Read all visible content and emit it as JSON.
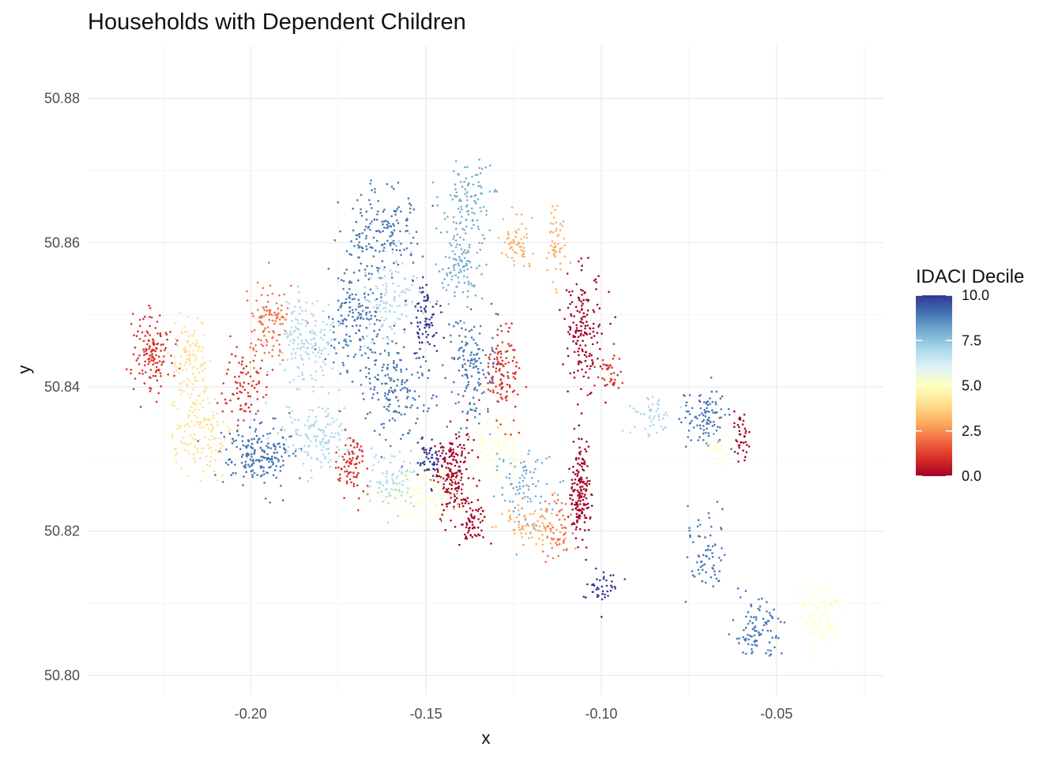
{
  "chart_data": {
    "type": "scatter",
    "title": "Households with Dependent Children",
    "xlabel": "x",
    "ylabel": "y",
    "xlim": [
      -0.2465,
      -0.0195
    ],
    "ylim": [
      50.7973,
      50.8873
    ],
    "x_ticks": [
      -0.2,
      -0.15,
      -0.1,
      -0.05
    ],
    "x_tick_labels": [
      "-0.20",
      "-0.15",
      "-0.10",
      "-0.05"
    ],
    "y_ticks": [
      50.8,
      50.82,
      50.84,
      50.86,
      50.88
    ],
    "y_tick_labels": [
      "50.80",
      "50.82",
      "50.84",
      "50.86",
      "50.88"
    ],
    "grid": true,
    "legend": {
      "title": "IDACI Decile",
      "position": "right",
      "min": 0,
      "max": 10,
      "ticks": [
        0,
        2.5,
        5,
        7.5,
        10
      ],
      "tick_labels": [
        "0.0",
        "2.5",
        "5.0",
        "7.5",
        "10.0"
      ],
      "colors": [
        "#a50026",
        "#d73027",
        "#f46d43",
        "#fdae61",
        "#fee090",
        "#ffffbf",
        "#e0f3f8",
        "#abd9e9",
        "#74add1",
        "#4575b4",
        "#313695"
      ]
    },
    "series": [
      {
        "clusters": [
          {
            "x": -0.228,
            "y": 50.845,
            "sx": 0.004,
            "sy": 0.004,
            "n": 140,
            "decile": 1
          },
          {
            "x": -0.217,
            "y": 50.843,
            "sx": 0.004,
            "sy": 0.005,
            "n": 120,
            "decile": 4
          },
          {
            "x": -0.215,
            "y": 50.833,
            "sx": 0.006,
            "sy": 0.004,
            "n": 130,
            "decile": 4
          },
          {
            "x": -0.198,
            "y": 50.831,
            "sx": 0.007,
            "sy": 0.003,
            "n": 200,
            "decile": 9
          },
          {
            "x": -0.195,
            "y": 50.849,
            "sx": 0.005,
            "sy": 0.004,
            "n": 110,
            "decile": 2
          },
          {
            "x": -0.202,
            "y": 50.84,
            "sx": 0.004,
            "sy": 0.004,
            "n": 80,
            "decile": 1
          },
          {
            "x": -0.184,
            "y": 50.846,
            "sx": 0.006,
            "sy": 0.005,
            "n": 160,
            "decile": 7
          },
          {
            "x": -0.18,
            "y": 50.833,
            "sx": 0.008,
            "sy": 0.003,
            "n": 140,
            "decile": 7
          },
          {
            "x": -0.171,
            "y": 50.829,
            "sx": 0.003,
            "sy": 0.003,
            "n": 80,
            "decile": 1
          },
          {
            "x": -0.163,
            "y": 50.862,
            "sx": 0.008,
            "sy": 0.004,
            "n": 160,
            "decile": 9
          },
          {
            "x": -0.17,
            "y": 50.85,
            "sx": 0.006,
            "sy": 0.005,
            "n": 150,
            "decile": 9
          },
          {
            "x": -0.16,
            "y": 50.84,
            "sx": 0.007,
            "sy": 0.005,
            "n": 170,
            "decile": 9
          },
          {
            "x": -0.16,
            "y": 50.852,
            "sx": 0.006,
            "sy": 0.004,
            "n": 120,
            "decile": 7
          },
          {
            "x": -0.138,
            "y": 50.866,
            "sx": 0.006,
            "sy": 0.003,
            "n": 100,
            "decile": 8
          },
          {
            "x": -0.14,
            "y": 50.857,
            "sx": 0.005,
            "sy": 0.004,
            "n": 110,
            "decile": 8
          },
          {
            "x": -0.15,
            "y": 50.849,
            "sx": 0.003,
            "sy": 0.004,
            "n": 80,
            "decile": 10
          },
          {
            "x": -0.137,
            "y": 50.843,
            "sx": 0.005,
            "sy": 0.005,
            "n": 140,
            "decile": 9
          },
          {
            "x": -0.128,
            "y": 50.842,
            "sx": 0.004,
            "sy": 0.005,
            "n": 110,
            "decile": 1
          },
          {
            "x": -0.124,
            "y": 50.86,
            "sx": 0.003,
            "sy": 0.003,
            "n": 60,
            "decile": 3
          },
          {
            "x": -0.113,
            "y": 50.86,
            "sx": 0.002,
            "sy": 0.004,
            "n": 50,
            "decile": 3
          },
          {
            "x": -0.105,
            "y": 50.848,
            "sx": 0.004,
            "sy": 0.006,
            "n": 160,
            "decile": 0
          },
          {
            "x": -0.098,
            "y": 50.842,
            "sx": 0.003,
            "sy": 0.002,
            "n": 40,
            "decile": 1
          },
          {
            "x": -0.142,
            "y": 50.828,
            "sx": 0.004,
            "sy": 0.004,
            "n": 190,
            "decile": 0
          },
          {
            "x": -0.137,
            "y": 50.821,
            "sx": 0.003,
            "sy": 0.002,
            "n": 60,
            "decile": 0
          },
          {
            "x": -0.13,
            "y": 50.832,
            "sx": 0.005,
            "sy": 0.004,
            "n": 110,
            "decile": 5
          },
          {
            "x": -0.123,
            "y": 50.826,
            "sx": 0.006,
            "sy": 0.004,
            "n": 90,
            "decile": 8
          },
          {
            "x": -0.15,
            "y": 50.825,
            "sx": 0.01,
            "sy": 0.003,
            "n": 170,
            "decile": 5
          },
          {
            "x": -0.16,
            "y": 50.827,
            "sx": 0.005,
            "sy": 0.003,
            "n": 80,
            "decile": 7
          },
          {
            "x": -0.149,
            "y": 50.83,
            "sx": 0.003,
            "sy": 0.002,
            "n": 50,
            "decile": 10
          },
          {
            "x": -0.12,
            "y": 50.821,
            "sx": 0.006,
            "sy": 0.002,
            "n": 80,
            "decile": 3
          },
          {
            "x": -0.106,
            "y": 50.825,
            "sx": 0.002,
            "sy": 0.005,
            "n": 170,
            "decile": 0
          },
          {
            "x": -0.113,
            "y": 50.82,
            "sx": 0.003,
            "sy": 0.003,
            "n": 50,
            "decile": 2
          },
          {
            "x": -0.1,
            "y": 50.812,
            "sx": 0.003,
            "sy": 0.002,
            "n": 40,
            "decile": 10
          },
          {
            "x": -0.07,
            "y": 50.836,
            "sx": 0.005,
            "sy": 0.003,
            "n": 100,
            "decile": 9
          },
          {
            "x": -0.086,
            "y": 50.836,
            "sx": 0.004,
            "sy": 0.002,
            "n": 50,
            "decile": 7
          },
          {
            "x": -0.06,
            "y": 50.833,
            "sx": 0.002,
            "sy": 0.003,
            "n": 40,
            "decile": 0
          },
          {
            "x": -0.066,
            "y": 50.832,
            "sx": 0.003,
            "sy": 0.003,
            "n": 40,
            "decile": 5
          },
          {
            "x": -0.07,
            "y": 50.816,
            "sx": 0.004,
            "sy": 0.004,
            "n": 70,
            "decile": 9
          },
          {
            "x": -0.055,
            "y": 50.806,
            "sx": 0.005,
            "sy": 0.003,
            "n": 90,
            "decile": 9
          },
          {
            "x": -0.038,
            "y": 50.808,
            "sx": 0.005,
            "sy": 0.004,
            "n": 110,
            "decile": 5
          }
        ]
      }
    ]
  }
}
